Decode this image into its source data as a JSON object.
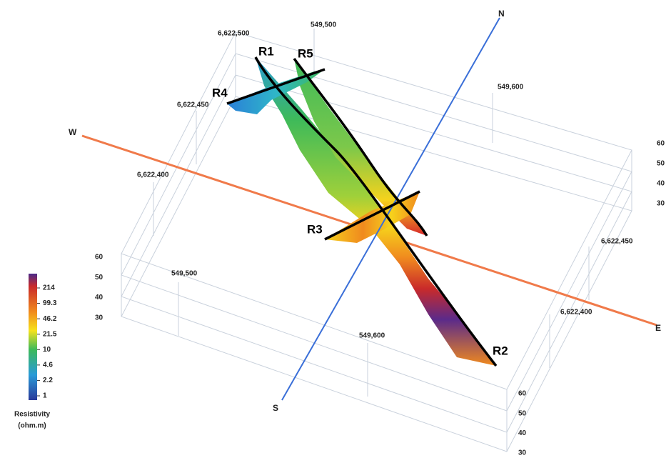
{
  "directions": {
    "north": "N",
    "south": "S",
    "west": "W",
    "east": "E"
  },
  "profiles": [
    "R1",
    "R5",
    "R4",
    "R3",
    "R2"
  ],
  "coordinates": {
    "top_northing": "6,622,500",
    "top_easting_1": "549,500",
    "top_easting_2": "549,600",
    "left_northing_1": "6,622,450",
    "left_northing_2": "6,622,400",
    "right_northing_1": "6,622,450",
    "right_northing_2": "6,622,400",
    "bottom_easting_1": "549,500",
    "bottom_easting_2": "549,600"
  },
  "depth_left": [
    "60",
    "50",
    "40",
    "30"
  ],
  "depth_bottom": [
    "60",
    "50",
    "40",
    "30"
  ],
  "depth_right": [
    "60",
    "50",
    "40",
    "30"
  ],
  "legend": {
    "title_line_1": "Resistivity",
    "title_line_2": "(ohm.m)",
    "ticks": [
      "214",
      "99.3",
      "46.2",
      "21.5",
      "10",
      "4.6",
      "2.2",
      "1"
    ]
  }
}
